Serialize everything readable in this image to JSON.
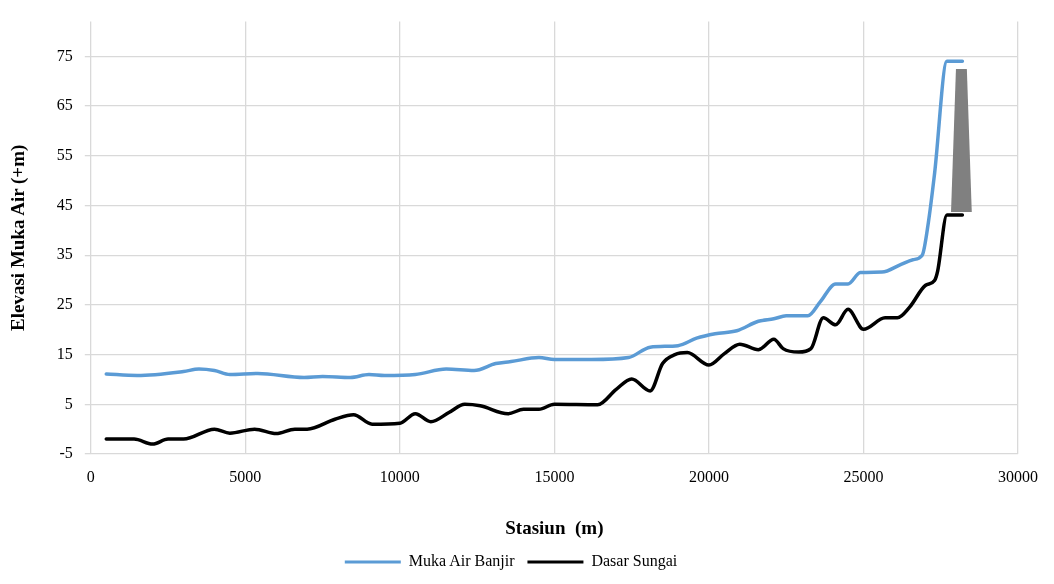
{
  "chart_data": {
    "type": "line",
    "xlabel": "Stasiun  (m)",
    "ylabel": "Elevasi Muka Air (+m)",
    "xlim": [
      0,
      30000
    ],
    "xticks": [
      0,
      5000,
      10000,
      15000,
      20000,
      25000,
      30000
    ],
    "ylim": [
      -5,
      82
    ],
    "yticks": [
      -5,
      5,
      15,
      25,
      35,
      45,
      55,
      65,
      75
    ],
    "grid": true,
    "legend": "bottom",
    "marker": "none",
    "line_style": "solid",
    "series": [
      {
        "name": "Muka Air Banjir",
        "color": "#5b9bd5",
        "x": [
          500,
          1500,
          3000,
          3500,
          4000,
          4500,
          5400,
          6900,
          7500,
          8400,
          9000,
          9500,
          10500,
          11500,
          12400,
          13100,
          13600,
          14500,
          15000,
          16200,
          17400,
          18100,
          19000,
          19600,
          20200,
          20900,
          21600,
          22100,
          22500,
          23200,
          23600,
          24100,
          24500,
          24900,
          25600,
          26200,
          26600,
          26900,
          27100,
          27300,
          27700,
          28200
        ],
        "values": [
          11.1,
          10.8,
          11.6,
          12.1,
          11.8,
          11.0,
          11.2,
          10.4,
          10.6,
          10.4,
          11.0,
          10.8,
          11.0,
          12.1,
          11.8,
          13.2,
          13.6,
          14.4,
          14.0,
          14.0,
          14.4,
          16.5,
          16.8,
          18.3,
          19.2,
          19.8,
          21.7,
          22.2,
          22.8,
          22.8,
          25.6,
          29.2,
          29.2,
          31.5,
          31.6,
          33.1,
          34.1,
          35.0,
          41.6,
          51.4,
          74.0,
          74.0
        ]
      },
      {
        "name": "Dasar Sungai",
        "color": "#000000",
        "x": [
          500,
          1400,
          2000,
          2500,
          3000,
          4000,
          4500,
          5300,
          6000,
          6600,
          7000,
          7900,
          8500,
          9100,
          10000,
          10500,
          11000,
          11600,
          12100,
          12600,
          13500,
          14000,
          14500,
          15000,
          16400,
          17000,
          17500,
          18100,
          18500,
          18900,
          19300,
          20000,
          20500,
          21000,
          21600,
          22100,
          22400,
          22900,
          23300,
          23700,
          24100,
          24500,
          25000,
          25700,
          26100,
          26500,
          27000,
          27300,
          27400,
          27700,
          28200
        ],
        "values": [
          -2.0,
          -2.0,
          -3.0,
          -2.0,
          -2.0,
          0.0,
          -0.8,
          0.0,
          -0.9,
          0.0,
          0.0,
          2.0,
          2.9,
          1.0,
          1.2,
          3.1,
          1.5,
          3.4,
          5.0,
          4.7,
          3.1,
          4.0,
          4.0,
          5.0,
          4.9,
          8.0,
          10.1,
          7.7,
          13.2,
          15.0,
          15.4,
          12.9,
          15.2,
          17.1,
          16.0,
          18.1,
          16.2,
          15.5,
          16.2,
          22.4,
          21.0,
          24.1,
          20.1,
          22.4,
          22.4,
          24.6,
          28.9,
          29.9,
          31.8,
          43.1,
          43.1
        ]
      }
    ]
  }
}
